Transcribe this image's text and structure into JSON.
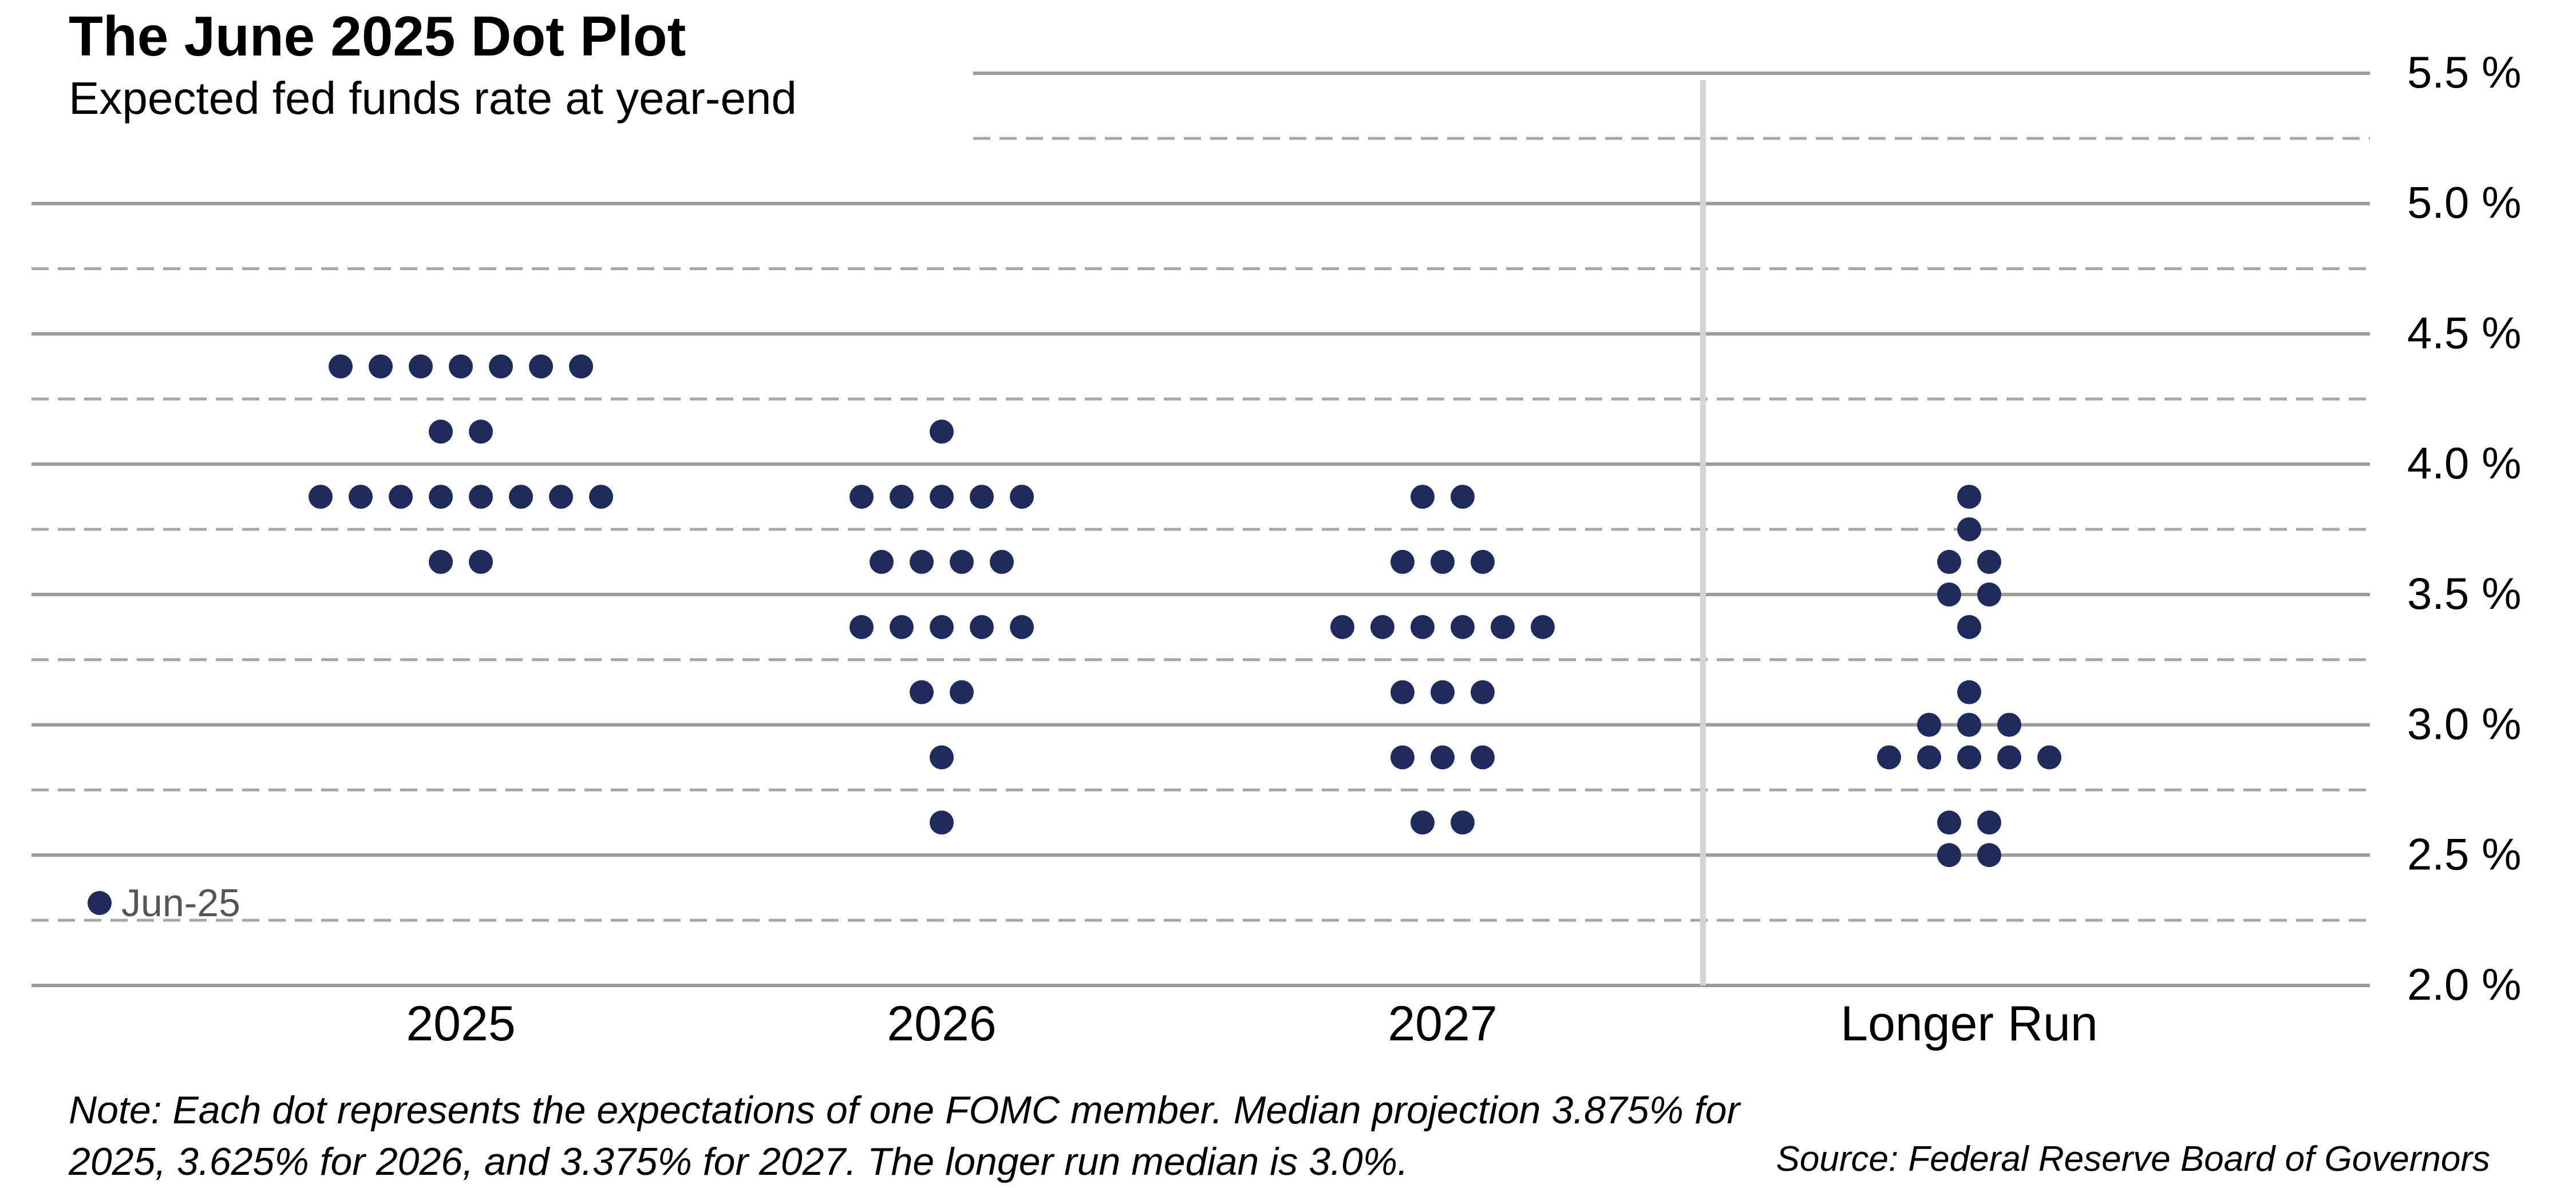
{
  "header": {
    "title": "The June 2025 Dot Plot",
    "subtitle": "Expected fed funds rate at year-end"
  },
  "footer": {
    "note": "Note:  Each dot represents the expectations of one FOMC member. Median projection 3.875% for 2025, 3.625% for 2026, and 3.375% for 2027. The longer run median is 3.0%.",
    "source": "Source: Federal Reserve Board of Governors"
  },
  "colors": {
    "dot": "#1f2b5c",
    "solid_grid": "#9b9b9b",
    "dashed_grid": "#a6a6a6",
    "divider": "#d4d4d4",
    "legend_text": "#555555"
  },
  "chart_data": {
    "type": "scatter",
    "title": "The June 2025 Dot Plot",
    "subtitle": "Expected fed funds rate at year-end",
    "categories": [
      "2025",
      "2026",
      "2027",
      "Longer Run"
    ],
    "y_ticks": [
      "2.0 %",
      "2.5 %",
      "3.0 %",
      "3.5 %",
      "4.0 %",
      "4.5 %",
      "5.0 %",
      "5.5 %"
    ],
    "ylim": [
      2.0,
      5.5
    ],
    "y_axis_side": "right",
    "grid": "solid at whole and half percent, dashed at quarter-point offsets",
    "legend": {
      "label": "Jun-25",
      "placement": "bottom-left"
    },
    "series": [
      {
        "name": "Jun-25",
        "dots": {
          "2025": [
            {
              "rate": 4.375,
              "count": 7
            },
            {
              "rate": 4.125,
              "count": 2
            },
            {
              "rate": 3.875,
              "count": 8
            },
            {
              "rate": 3.625,
              "count": 2
            }
          ],
          "2026": [
            {
              "rate": 4.125,
              "count": 1
            },
            {
              "rate": 3.875,
              "count": 5
            },
            {
              "rate": 3.625,
              "count": 4
            },
            {
              "rate": 3.375,
              "count": 5
            },
            {
              "rate": 3.125,
              "count": 2
            },
            {
              "rate": 2.875,
              "count": 1
            },
            {
              "rate": 2.625,
              "count": 1
            }
          ],
          "2027": [
            {
              "rate": 3.875,
              "count": 2
            },
            {
              "rate": 3.625,
              "count": 3
            },
            {
              "rate": 3.375,
              "count": 6
            },
            {
              "rate": 3.125,
              "count": 3
            },
            {
              "rate": 2.875,
              "count": 3
            },
            {
              "rate": 2.625,
              "count": 2
            }
          ],
          "Longer Run": [
            {
              "rate": 3.875,
              "count": 1
            },
            {
              "rate": 3.75,
              "count": 1
            },
            {
              "rate": 3.625,
              "count": 2
            },
            {
              "rate": 3.5,
              "count": 2
            },
            {
              "rate": 3.375,
              "count": 1
            },
            {
              "rate": 3.125,
              "count": 1
            },
            {
              "rate": 3.0,
              "count": 3
            },
            {
              "rate": 2.875,
              "count": 5
            },
            {
              "rate": 2.625,
              "count": 2
            },
            {
              "rate": 2.5,
              "count": 2
            }
          ]
        }
      }
    ]
  }
}
